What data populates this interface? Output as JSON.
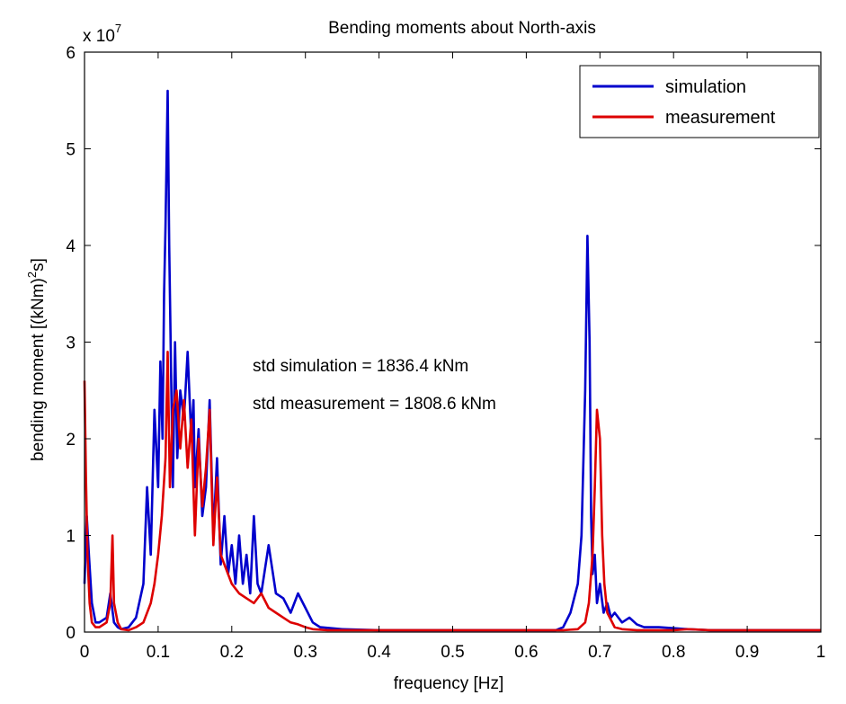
{
  "chart_data": {
    "type": "line",
    "title": "Bending moments about North-axis",
    "xlabel": "frequency [Hz]",
    "ylabel_main": "bending moment [(kNm)",
    "ylabel_sup": "2",
    "ylabel_tail": "s]",
    "y_multiplier_base": "x 10",
    "y_multiplier_exp": "7",
    "xlim": [
      0,
      1
    ],
    "ylim": [
      0,
      6
    ],
    "xticks": [
      "0",
      "0.1",
      "0.2",
      "0.3",
      "0.4",
      "0.5",
      "0.6",
      "0.7",
      "0.8",
      "0.9",
      "1"
    ],
    "yticks": [
      "0",
      "1",
      "2",
      "3",
      "4",
      "5",
      "6"
    ],
    "grid": false,
    "legend_position": "top-right",
    "annotations": [
      "std simulation = 1836.4 kNm",
      "std measurement = 1808.6 kNm"
    ],
    "series": [
      {
        "name": "simulation",
        "color": "#0000cc",
        "x": [
          0,
          0.003,
          0.006,
          0.01,
          0.015,
          0.02,
          0.03,
          0.035,
          0.04,
          0.045,
          0.05,
          0.06,
          0.07,
          0.08,
          0.085,
          0.09,
          0.095,
          0.1,
          0.103,
          0.106,
          0.108,
          0.11,
          0.113,
          0.115,
          0.118,
          0.12,
          0.123,
          0.126,
          0.13,
          0.135,
          0.14,
          0.145,
          0.148,
          0.15,
          0.155,
          0.16,
          0.165,
          0.17,
          0.175,
          0.18,
          0.185,
          0.19,
          0.195,
          0.2,
          0.205,
          0.21,
          0.215,
          0.22,
          0.225,
          0.23,
          0.235,
          0.24,
          0.25,
          0.26,
          0.27,
          0.28,
          0.29,
          0.3,
          0.31,
          0.32,
          0.35,
          0.4,
          0.5,
          0.6,
          0.64,
          0.65,
          0.66,
          0.67,
          0.675,
          0.68,
          0.683,
          0.686,
          0.688,
          0.69,
          0.693,
          0.696,
          0.7,
          0.705,
          0.71,
          0.715,
          0.72,
          0.73,
          0.74,
          0.75,
          0.76,
          0.78,
          0.8,
          0.82,
          0.85,
          0.9,
          1.0
        ],
        "y": [
          0.5,
          1.2,
          0.8,
          0.3,
          0.1,
          0.1,
          0.15,
          0.4,
          0.1,
          0.05,
          0.03,
          0.05,
          0.15,
          0.5,
          1.5,
          0.8,
          2.3,
          1.5,
          2.8,
          2.0,
          3.5,
          4.2,
          5.6,
          4.0,
          2.5,
          1.5,
          3.0,
          1.8,
          2.5,
          2.2,
          2.9,
          2.0,
          2.4,
          1.5,
          2.1,
          1.2,
          1.5,
          2.4,
          1.0,
          1.8,
          0.7,
          1.2,
          0.6,
          0.9,
          0.5,
          1.0,
          0.5,
          0.8,
          0.4,
          1.2,
          0.5,
          0.4,
          0.9,
          0.4,
          0.35,
          0.2,
          0.4,
          0.25,
          0.1,
          0.05,
          0.03,
          0.02,
          0.02,
          0.02,
          0.02,
          0.05,
          0.2,
          0.5,
          1.0,
          2.5,
          4.1,
          3.0,
          1.2,
          0.6,
          0.8,
          0.3,
          0.5,
          0.2,
          0.3,
          0.15,
          0.2,
          0.1,
          0.15,
          0.08,
          0.05,
          0.05,
          0.04,
          0.03,
          0.02,
          0.02,
          0.02
        ]
      },
      {
        "name": "measurement",
        "color": "#dd0000",
        "x": [
          0,
          0.002,
          0.004,
          0.007,
          0.01,
          0.015,
          0.02,
          0.03,
          0.035,
          0.038,
          0.04,
          0.045,
          0.05,
          0.06,
          0.07,
          0.08,
          0.09,
          0.095,
          0.1,
          0.105,
          0.11,
          0.113,
          0.116,
          0.12,
          0.125,
          0.13,
          0.135,
          0.14,
          0.145,
          0.15,
          0.155,
          0.16,
          0.165,
          0.17,
          0.175,
          0.18,
          0.185,
          0.19,
          0.2,
          0.21,
          0.22,
          0.23,
          0.24,
          0.25,
          0.26,
          0.27,
          0.28,
          0.29,
          0.3,
          0.31,
          0.33,
          0.36,
          0.4,
          0.5,
          0.6,
          0.65,
          0.67,
          0.68,
          0.685,
          0.69,
          0.693,
          0.696,
          0.7,
          0.703,
          0.706,
          0.71,
          0.72,
          0.73,
          0.75,
          0.8,
          0.82,
          0.85,
          0.9,
          1.0
        ],
        "y": [
          2.6,
          1.6,
          0.8,
          0.3,
          0.1,
          0.05,
          0.05,
          0.1,
          0.3,
          1.0,
          0.3,
          0.1,
          0.03,
          0.02,
          0.05,
          0.1,
          0.3,
          0.5,
          0.8,
          1.2,
          1.8,
          2.9,
          1.5,
          2.3,
          2.5,
          1.9,
          2.4,
          1.7,
          2.2,
          1.0,
          2.0,
          1.3,
          1.7,
          2.3,
          0.9,
          1.6,
          0.8,
          0.7,
          0.5,
          0.4,
          0.35,
          0.3,
          0.4,
          0.25,
          0.2,
          0.15,
          0.1,
          0.08,
          0.05,
          0.03,
          0.02,
          0.02,
          0.02,
          0.02,
          0.02,
          0.02,
          0.03,
          0.1,
          0.3,
          0.8,
          1.5,
          2.3,
          2.0,
          1.0,
          0.5,
          0.2,
          0.05,
          0.03,
          0.02,
          0.02,
          0.03,
          0.02,
          0.02,
          0.02
        ]
      }
    ]
  }
}
